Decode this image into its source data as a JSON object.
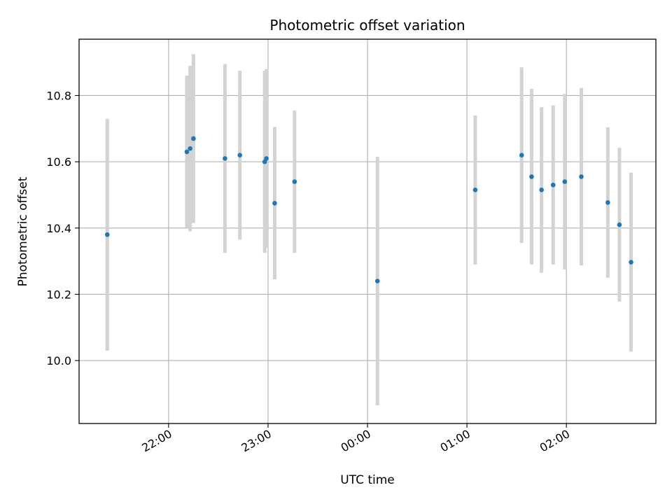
{
  "chart_data": {
    "type": "scatter",
    "title": "Photometric offset variation",
    "xlabel": "UTC time",
    "ylabel": "Photometric offset",
    "x_axis": {
      "kind": "time",
      "range": [
        "21:06",
        "02:54"
      ],
      "ticks": [
        "22:00",
        "23:00",
        "00:00",
        "01:00",
        "02:00"
      ]
    },
    "y_axis": {
      "range": [
        9.81,
        10.97
      ],
      "ticks": [
        10.0,
        10.2,
        10.4,
        10.6,
        10.8
      ],
      "tick_labels": [
        "10.0",
        "10.2",
        "10.4",
        "10.6",
        "10.8"
      ]
    },
    "grid": true,
    "colors": {
      "marker": "#1f77b4",
      "errorbar": "#d3d3d3",
      "grid": "#b0b0b0"
    },
    "points": [
      {
        "time": "21:23",
        "y": 10.38,
        "err": 0.35
      },
      {
        "time": "22:11",
        "y": 10.63,
        "err": 0.23
      },
      {
        "time": "22:13",
        "y": 10.64,
        "err": 0.25
      },
      {
        "time": "22:15",
        "y": 10.67,
        "err": 0.255
      },
      {
        "time": "22:34",
        "y": 10.61,
        "err": 0.285
      },
      {
        "time": "22:43",
        "y": 10.62,
        "err": 0.255
      },
      {
        "time": "22:58",
        "y": 10.6,
        "err": 0.275
      },
      {
        "time": "22:59",
        "y": 10.61,
        "err": 0.27
      },
      {
        "time": "23:04",
        "y": 10.475,
        "err": 0.23
      },
      {
        "time": "23:16",
        "y": 10.54,
        "err": 0.215
      },
      {
        "time": "00:06",
        "y": 10.24,
        "err": 0.375
      },
      {
        "time": "01:05",
        "y": 10.515,
        "err": 0.225
      },
      {
        "time": "01:33",
        "y": 10.62,
        "err": 0.265
      },
      {
        "time": "01:39",
        "y": 10.555,
        "err": 0.265
      },
      {
        "time": "01:45",
        "y": 10.515,
        "err": 0.25
      },
      {
        "time": "01:52",
        "y": 10.53,
        "err": 0.24
      },
      {
        "time": "01:59",
        "y": 10.54,
        "err": 0.265
      },
      {
        "time": "02:09",
        "y": 10.555,
        "err": 0.268
      },
      {
        "time": "02:25",
        "y": 10.477,
        "err": 0.227
      },
      {
        "time": "02:32",
        "y": 10.41,
        "err": 0.232
      },
      {
        "time": "02:39",
        "y": 10.297,
        "err": 0.27
      }
    ]
  }
}
